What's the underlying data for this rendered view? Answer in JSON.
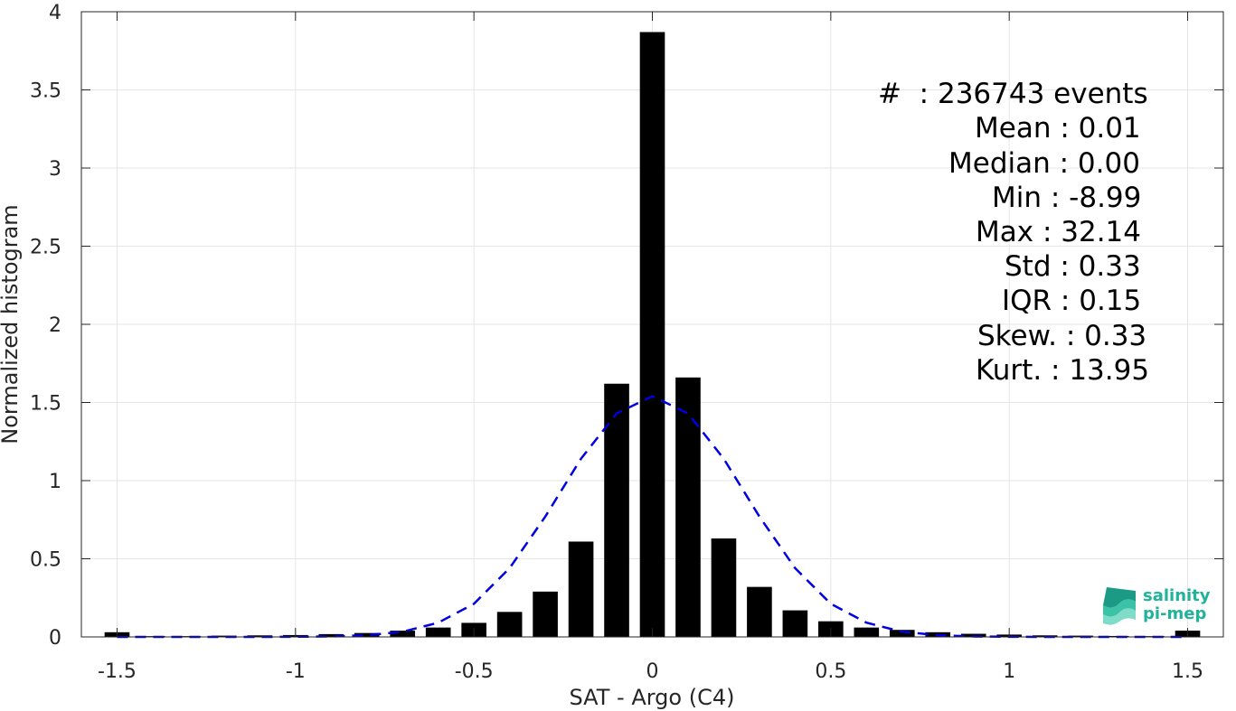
{
  "chart_data": {
    "type": "bar",
    "xlabel": "SAT - Argo (C4)",
    "ylabel": "Normalized histogram",
    "xlim": [
      -1.6,
      1.6
    ],
    "ylim": [
      0,
      4
    ],
    "xticks": [
      "-1.5",
      "-1",
      "-0.5",
      "0",
      "0.5",
      "1",
      "1.5"
    ],
    "xtick_values": [
      -1.5,
      -1,
      -0.5,
      0,
      0.5,
      1,
      1.5
    ],
    "yticks": [
      "0",
      "0.5",
      "1",
      "1.5",
      "2",
      "2.5",
      "3",
      "3.5",
      "4"
    ],
    "ytick_values": [
      0,
      0.5,
      1,
      1.5,
      2,
      2.5,
      3,
      3.5,
      4
    ],
    "grid": true,
    "bar_width": 0.07,
    "bars": {
      "x": [
        -1.5,
        -1.4,
        -1.3,
        -1.2,
        -1.1,
        -1.0,
        -0.9,
        -0.8,
        -0.7,
        -0.6,
        -0.5,
        -0.4,
        -0.3,
        -0.2,
        -0.1,
        0.0,
        0.1,
        0.2,
        0.3,
        0.4,
        0.5,
        0.6,
        0.7,
        0.8,
        0.9,
        1.0,
        1.1,
        1.2,
        1.3,
        1.4,
        1.5
      ],
      "y": [
        0.03,
        0.005,
        0.005,
        0.008,
        0.01,
        0.012,
        0.018,
        0.025,
        0.04,
        0.06,
        0.09,
        0.16,
        0.29,
        0.61,
        1.62,
        3.87,
        1.66,
        0.63,
        0.32,
        0.17,
        0.1,
        0.06,
        0.045,
        0.03,
        0.02,
        0.015,
        0.01,
        0.008,
        0.006,
        0.005,
        0.04
      ],
      "color": "#000000"
    },
    "series": [
      {
        "type": "line",
        "style": "dashed",
        "color": "#0000e0",
        "x": [
          -1.5,
          -1.4,
          -1.3,
          -1.2,
          -1.1,
          -1.0,
          -0.9,
          -0.8,
          -0.7,
          -0.6,
          -0.5,
          -0.4,
          -0.3,
          -0.2,
          -0.1,
          0.0,
          0.1,
          0.2,
          0.3,
          0.4,
          0.5,
          0.6,
          0.7,
          0.8,
          0.9,
          1.0,
          1.1,
          1.2,
          1.3,
          1.4,
          1.5
        ],
        "y": [
          0.0,
          0.0,
          0.0,
          0.0,
          0.0,
          0.001,
          0.003,
          0.011,
          0.033,
          0.091,
          0.212,
          0.44,
          0.77,
          1.14,
          1.43,
          1.54,
          1.43,
          1.14,
          0.77,
          0.44,
          0.212,
          0.091,
          0.033,
          0.011,
          0.003,
          0.001,
          0.0,
          0.0,
          0.0,
          0.0,
          0.0
        ]
      }
    ],
    "annotation_lines": [
      "#  : 236743 events",
      "Mean : 0.01",
      "Median : 0.00",
      "Min : -8.99",
      "Max : 32.14",
      "Std : 0.33",
      "IQR : 0.15",
      "Skew. : 0.33",
      "Kurt. : 13.95"
    ]
  },
  "logo": {
    "line1": "salinity",
    "line2": "pi-mep",
    "color": "#1fb39a"
  }
}
